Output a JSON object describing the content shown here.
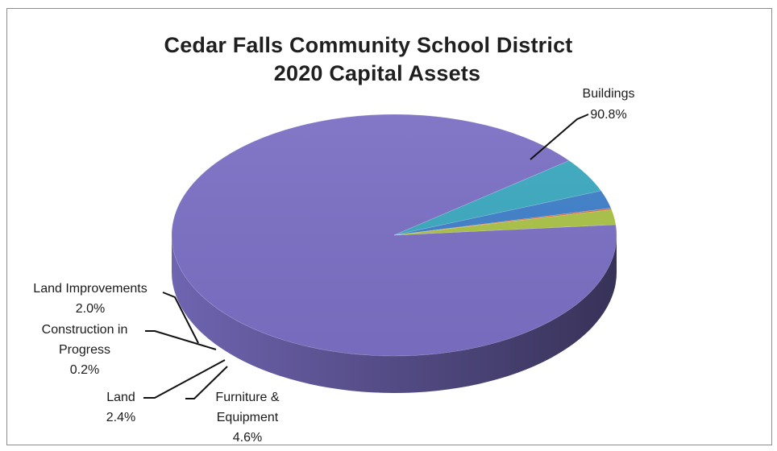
{
  "chart_data": {
    "type": "pie",
    "title": "Cedar Falls Community School District",
    "subtitle": "2020 Capital Assets",
    "slices": [
      {
        "label": "Buildings",
        "value": 90.8,
        "value_label": "90.8%",
        "color": "#7b6fc4"
      },
      {
        "label": "Furniture & Equipment",
        "value": 4.6,
        "value_label": "4.6%",
        "color": "#3ba8be"
      },
      {
        "label": "Land",
        "value": 2.4,
        "value_label": "2.4%",
        "color": "#3f7fc9"
      },
      {
        "label": "Construction in Progress",
        "value": 0.2,
        "value_label": "0.2%",
        "color": "#d46a3e"
      },
      {
        "label": "Land Improvements",
        "value": 2.0,
        "value_label": "2.0%",
        "color": "#a9c247"
      }
    ],
    "style": "3d",
    "legend": "none"
  }
}
